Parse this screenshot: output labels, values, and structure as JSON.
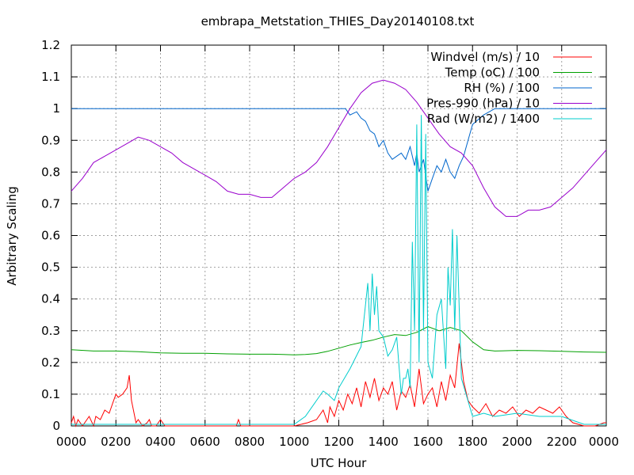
{
  "chart_data": {
    "type": "line",
    "title": "embrapa_Metstation_THIES_Day20140108.txt",
    "xlabel": "UTC Hour",
    "ylabel": "Arbitrary Scaling",
    "xlim": [
      0,
      24
    ],
    "ylim": [
      0,
      1.2
    ],
    "grid": true,
    "legend_position": "top-right",
    "x_tick_labels": [
      "0000",
      "0200",
      "0400",
      "0600",
      "0800",
      "1000",
      "1200",
      "1400",
      "1600",
      "1800",
      "2000",
      "2200",
      "0000"
    ],
    "y_tick_labels": [
      "0",
      "0.1",
      "0.2",
      "0.3",
      "0.4",
      "0.5",
      "0.6",
      "0.7",
      "0.8",
      "0.9",
      "1",
      "1.1",
      "1.2"
    ],
    "series": [
      {
        "name": "Windvel (m/s) / 10",
        "color": "#ff0000",
        "x": [
          0.0,
          0.1,
          0.2,
          0.3,
          0.5,
          0.8,
          1.0,
          1.1,
          1.3,
          1.5,
          1.7,
          1.9,
          2.0,
          2.1,
          2.3,
          2.5,
          2.6,
          2.7,
          2.9,
          3.0,
          3.2,
          3.4,
          3.5,
          3.6,
          3.8,
          4.0,
          4.1,
          4.2,
          4.4,
          5.0,
          6.0,
          7.0,
          7.4,
          7.5,
          7.6,
          8.0,
          9.0,
          10.0,
          10.6,
          11.0,
          11.3,
          11.5,
          11.6,
          11.8,
          12.0,
          12.2,
          12.4,
          12.6,
          12.8,
          13.0,
          13.2,
          13.4,
          13.6,
          13.8,
          14.0,
          14.2,
          14.4,
          14.6,
          14.8,
          15.0,
          15.2,
          15.4,
          15.6,
          15.8,
          16.0,
          16.2,
          16.4,
          16.6,
          16.8,
          17.0,
          17.2,
          17.4,
          17.6,
          17.8,
          18.0,
          18.3,
          18.6,
          18.9,
          19.2,
          19.5,
          19.8,
          20.1,
          20.4,
          20.7,
          21.0,
          21.3,
          21.6,
          21.9,
          22.2,
          22.5,
          23.0,
          23.5,
          23.9,
          24.0
        ],
        "values": [
          0.01,
          0.03,
          0.0,
          0.02,
          0.0,
          0.03,
          0.0,
          0.03,
          0.02,
          0.05,
          0.04,
          0.08,
          0.1,
          0.09,
          0.1,
          0.12,
          0.16,
          0.08,
          0.01,
          0.02,
          0.0,
          0.01,
          0.02,
          0.0,
          0.0,
          0.02,
          0.01,
          0.0,
          0.0,
          0.0,
          0.0,
          0.0,
          0.0,
          0.02,
          0.0,
          0.0,
          0.0,
          0.0,
          0.01,
          0.02,
          0.05,
          0.01,
          0.06,
          0.03,
          0.08,
          0.05,
          0.1,
          0.07,
          0.12,
          0.06,
          0.14,
          0.09,
          0.15,
          0.08,
          0.12,
          0.1,
          0.14,
          0.05,
          0.11,
          0.09,
          0.13,
          0.06,
          0.18,
          0.07,
          0.1,
          0.12,
          0.06,
          0.14,
          0.08,
          0.16,
          0.12,
          0.26,
          0.14,
          0.08,
          0.06,
          0.04,
          0.07,
          0.03,
          0.05,
          0.04,
          0.06,
          0.03,
          0.05,
          0.04,
          0.06,
          0.05,
          0.04,
          0.06,
          0.03,
          0.01,
          0.0,
          0.0,
          0.01,
          0.01
        ]
      },
      {
        "name": "Temp (oC) / 100",
        "color": "#00a000",
        "x": [
          0,
          1,
          2,
          3,
          4,
          5,
          6,
          7,
          8,
          9,
          9.5,
          10,
          10.5,
          11,
          11.5,
          12,
          12.5,
          13,
          13.5,
          14,
          14.5,
          15,
          15.5,
          16,
          16.5,
          17,
          17.5,
          18,
          18.5,
          19,
          20,
          21,
          22,
          23,
          24
        ],
        "values": [
          0.24,
          0.236,
          0.236,
          0.234,
          0.23,
          0.229,
          0.229,
          0.227,
          0.226,
          0.226,
          0.225,
          0.224,
          0.225,
          0.228,
          0.235,
          0.245,
          0.255,
          0.263,
          0.27,
          0.28,
          0.288,
          0.285,
          0.295,
          0.313,
          0.3,
          0.31,
          0.3,
          0.265,
          0.24,
          0.236,
          0.238,
          0.237,
          0.235,
          0.233,
          0.232
        ]
      },
      {
        "name": "RH (%) / 100",
        "color": "#0066cc",
        "x": [
          0,
          11,
          12.3,
          12.5,
          12.8,
          13.0,
          13.2,
          13.4,
          13.6,
          13.8,
          14.0,
          14.2,
          14.4,
          14.6,
          14.8,
          15.0,
          15.2,
          15.4,
          15.5,
          15.6,
          15.8,
          16.0,
          16.2,
          16.4,
          16.6,
          16.8,
          17.0,
          17.2,
          17.4,
          17.6,
          17.8,
          18.0,
          18.5,
          19.0,
          24
        ],
        "values": [
          1.0,
          1.0,
          1.0,
          0.98,
          0.99,
          0.97,
          0.96,
          0.93,
          0.92,
          0.88,
          0.9,
          0.86,
          0.84,
          0.85,
          0.86,
          0.84,
          0.88,
          0.82,
          0.86,
          0.8,
          0.84,
          0.74,
          0.78,
          0.82,
          0.8,
          0.84,
          0.8,
          0.78,
          0.82,
          0.85,
          0.9,
          0.95,
          0.98,
          1.0,
          1.0
        ]
      },
      {
        "name": "Pres-990 (hPa) / 10",
        "color": "#9900cc",
        "x": [
          0,
          0.5,
          1,
          1.5,
          2,
          2.5,
          3,
          3.5,
          4,
          4.5,
          5,
          5.5,
          6,
          6.5,
          7,
          7.5,
          8,
          8.5,
          9,
          9.5,
          10,
          10.5,
          11,
          11.5,
          12,
          12.5,
          13,
          13.5,
          14,
          14.5,
          15,
          15.5,
          16,
          16.5,
          17,
          17.5,
          18,
          18.5,
          19,
          19.5,
          20,
          20.5,
          21,
          21.5,
          22,
          22.5,
          23,
          23.5,
          24
        ],
        "values": [
          0.74,
          0.78,
          0.83,
          0.85,
          0.87,
          0.89,
          0.91,
          0.9,
          0.88,
          0.86,
          0.83,
          0.81,
          0.79,
          0.77,
          0.74,
          0.73,
          0.73,
          0.72,
          0.72,
          0.75,
          0.78,
          0.8,
          0.83,
          0.88,
          0.94,
          1.0,
          1.05,
          1.08,
          1.09,
          1.08,
          1.06,
          1.02,
          0.97,
          0.92,
          0.88,
          0.86,
          0.82,
          0.75,
          0.69,
          0.66,
          0.66,
          0.68,
          0.68,
          0.69,
          0.72,
          0.75,
          0.79,
          0.83,
          0.87
        ]
      },
      {
        "name": "Rad (W/m2) / 1400",
        "color": "#00cccc",
        "x": [
          0,
          10.0,
          10.5,
          11.0,
          11.3,
          11.5,
          11.8,
          12.0,
          12.5,
          13.0,
          13.3,
          13.4,
          13.5,
          13.6,
          13.7,
          13.8,
          14.0,
          14.2,
          14.4,
          14.6,
          14.8,
          14.9,
          15.0,
          15.1,
          15.2,
          15.3,
          15.4,
          15.5,
          15.6,
          15.7,
          15.8,
          15.9,
          16.0,
          16.2,
          16.4,
          16.6,
          16.8,
          16.9,
          17.0,
          17.1,
          17.2,
          17.3,
          17.5,
          18.0,
          18.5,
          19.0,
          20.0,
          21.0,
          22.0,
          23.0,
          24.0
        ],
        "values": [
          0.005,
          0.005,
          0.03,
          0.08,
          0.11,
          0.1,
          0.08,
          0.12,
          0.18,
          0.25,
          0.45,
          0.3,
          0.48,
          0.35,
          0.44,
          0.3,
          0.28,
          0.22,
          0.24,
          0.28,
          0.1,
          0.15,
          0.15,
          0.18,
          0.12,
          0.58,
          0.3,
          0.95,
          0.2,
          0.98,
          0.3,
          0.92,
          0.2,
          0.15,
          0.35,
          0.4,
          0.18,
          0.5,
          0.38,
          0.62,
          0.3,
          0.6,
          0.15,
          0.03,
          0.04,
          0.03,
          0.04,
          0.03,
          0.03,
          0.005,
          0.005
        ]
      }
    ]
  }
}
